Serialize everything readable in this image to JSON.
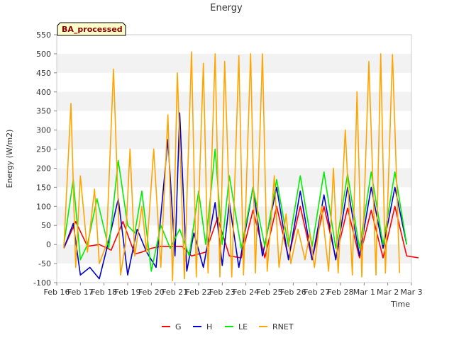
{
  "chart_data": {
    "type": "line",
    "title": "Energy",
    "xlabel": "Time",
    "ylabel": "Energy (W/m2)",
    "tag": "BA_processed",
    "ylim": [
      -100,
      550
    ],
    "xlim": [
      "Feb 16",
      "Mar 3"
    ],
    "yticks": [
      -100,
      -50,
      0,
      50,
      100,
      150,
      200,
      250,
      300,
      350,
      400,
      450,
      500,
      550
    ],
    "xticks": [
      "Feb 16",
      "Feb 17",
      "Feb 18",
      "Feb 19",
      "Feb 20",
      "Feb 21",
      "Feb 22",
      "Feb 23",
      "Feb 24",
      "Feb 25",
      "Feb 26",
      "Feb 27",
      "Feb 28",
      "Mar 1",
      "Mar 2",
      "Mar 3"
    ],
    "grid": "alternating horizontal bands",
    "legend_position": "bottom",
    "x_day_offset_start": "Feb 16",
    "series": [
      {
        "name": "G",
        "color": "#ff0000",
        "x": [
          16.3,
          16.8,
          17.3,
          17.8,
          18.3,
          18.8,
          19.3,
          19.6,
          20.0,
          20.4,
          20.8,
          21.3,
          21.7,
          22.3,
          22.8,
          23.3,
          23.8,
          24.3,
          24.8,
          25.3,
          25.8,
          26.3,
          26.8,
          27.3,
          27.8,
          28.3,
          28.8,
          29.3,
          29.8,
          30.3,
          30.8,
          31.3
        ],
        "y": [
          -10,
          60,
          -5,
          0,
          -15,
          60,
          -25,
          -20,
          -10,
          -5,
          -5,
          -5,
          -30,
          -20,
          70,
          -30,
          -35,
          90,
          -35,
          100,
          -35,
          100,
          -40,
          100,
          -35,
          95,
          -35,
          90,
          -35,
          100,
          -30,
          -35
        ]
      },
      {
        "name": "H",
        "color": "#0000cc",
        "x": [
          16.3,
          16.7,
          17.0,
          17.4,
          17.8,
          18.2,
          18.6,
          19.0,
          19.4,
          19.8,
          20.2,
          20.7,
          21.0,
          21.2,
          21.5,
          21.8,
          22.2,
          22.7,
          23.0,
          23.3,
          23.7,
          24.3,
          24.7,
          25.3,
          25.8,
          26.3,
          26.8,
          27.3,
          27.8,
          28.3,
          28.8,
          29.3,
          29.8,
          30.3,
          30.8
        ],
        "y": [
          -10,
          55,
          -80,
          -60,
          -90,
          10,
          120,
          -80,
          40,
          -20,
          -60,
          275,
          -30,
          345,
          -70,
          30,
          -60,
          110,
          -55,
          110,
          -60,
          150,
          -30,
          150,
          -40,
          140,
          -40,
          130,
          -40,
          150,
          -30,
          150,
          -10,
          150,
          0
        ]
      },
      {
        "name": "LE",
        "color": "#00ee00",
        "x": [
          16.3,
          16.7,
          17.0,
          17.3,
          17.7,
          18.2,
          18.6,
          19.0,
          19.3,
          19.6,
          20.0,
          20.4,
          20.8,
          21.2,
          21.6,
          22.0,
          22.3,
          22.7,
          23.0,
          23.3,
          23.8,
          24.3,
          24.8,
          25.3,
          25.8,
          26.3,
          26.8,
          27.3,
          27.8,
          28.3,
          28.8,
          29.3,
          29.8,
          30.3,
          30.8
        ],
        "y": [
          0,
          170,
          -40,
          0,
          120,
          -10,
          220,
          50,
          30,
          140,
          -70,
          50,
          -10,
          40,
          -30,
          140,
          0,
          250,
          0,
          180,
          -10,
          150,
          -5,
          170,
          -5,
          180,
          -5,
          190,
          -10,
          185,
          -10,
          190,
          0,
          190,
          0
        ]
      },
      {
        "name": "RNET",
        "color": "#ffa500",
        "x": [
          16.3,
          16.6,
          16.8,
          17.0,
          17.3,
          17.6,
          17.8,
          18.1,
          18.4,
          18.7,
          18.9,
          19.1,
          19.3,
          19.6,
          19.8,
          20.1,
          20.4,
          20.7,
          20.9,
          21.1,
          21.4,
          21.7,
          21.9,
          22.2,
          22.4,
          22.7,
          22.9,
          23.1,
          23.4,
          23.7,
          23.9,
          24.2,
          24.4,
          24.7,
          24.9,
          25.2,
          25.4,
          25.7,
          25.9,
          26.2,
          26.5,
          26.7,
          26.9,
          27.2,
          27.5,
          27.7,
          27.9,
          28.2,
          28.5,
          28.7,
          28.9,
          29.2,
          29.5,
          29.7,
          29.9,
          30.2,
          30.5
        ],
        "y": [
          -10,
          370,
          -60,
          180,
          -20,
          145,
          -50,
          0,
          460,
          -80,
          0,
          250,
          -30,
          100,
          -20,
          250,
          -60,
          340,
          -95,
          450,
          -90,
          505,
          -85,
          475,
          -75,
          500,
          -85,
          480,
          -85,
          495,
          -80,
          500,
          -75,
          500,
          -70,
          180,
          -60,
          80,
          -50,
          40,
          -40,
          30,
          -60,
          100,
          -70,
          200,
          -75,
          300,
          -80,
          400,
          -85,
          480,
          -80,
          500,
          -75,
          498,
          -75
        ]
      }
    ]
  }
}
